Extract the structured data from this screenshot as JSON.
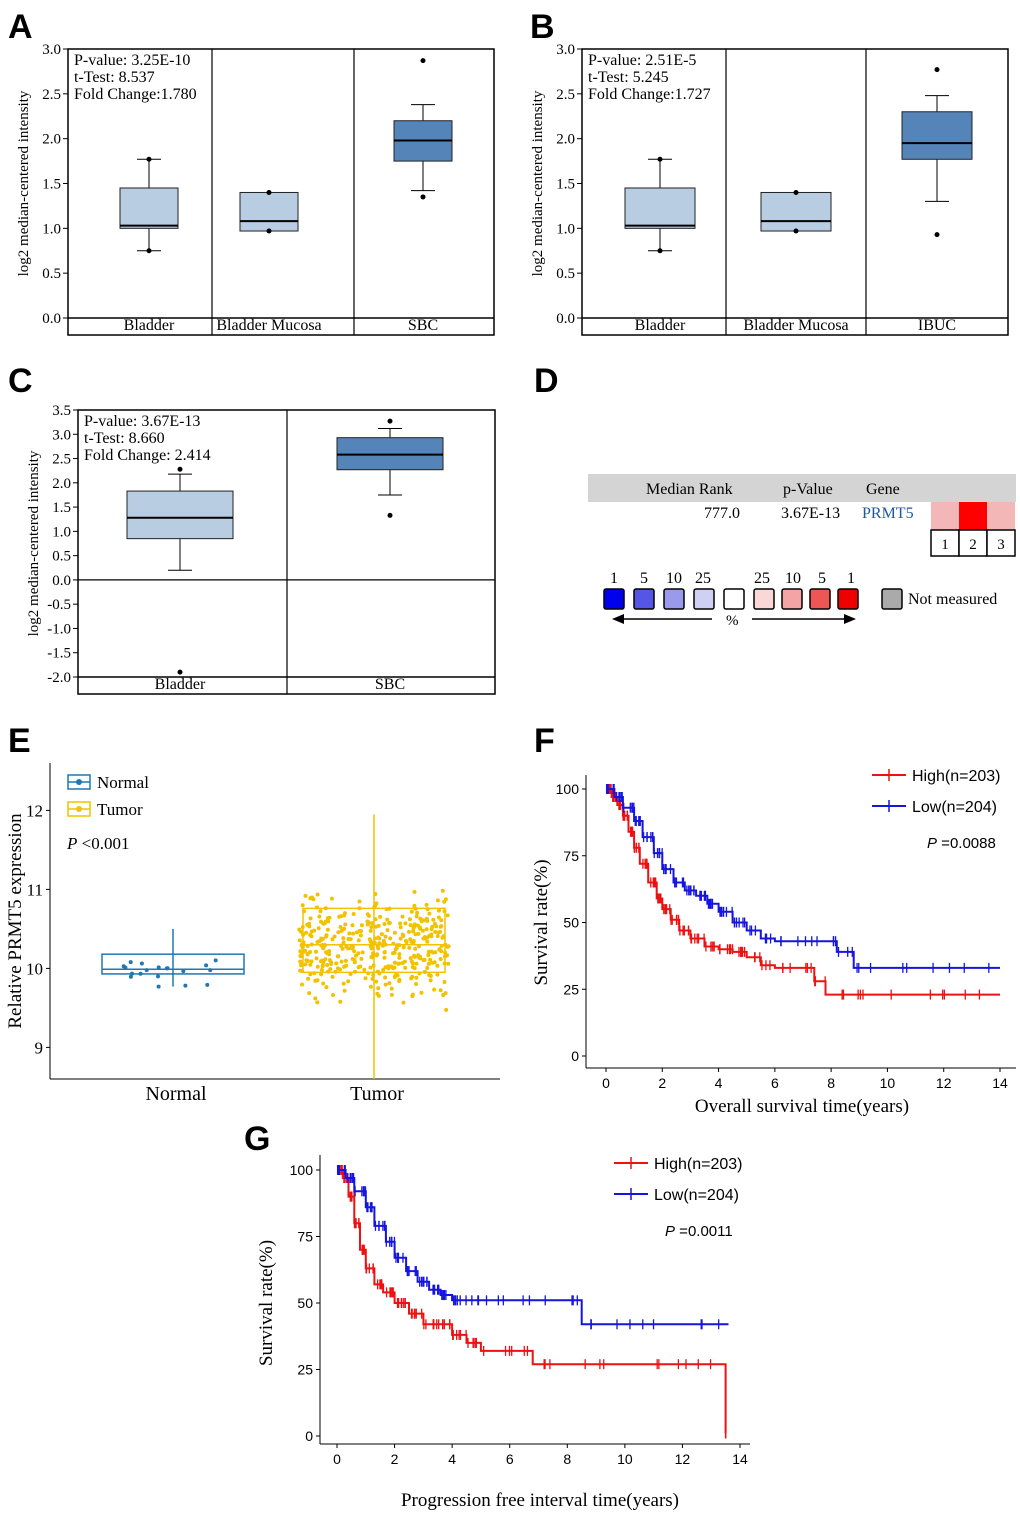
{
  "panel_labels": [
    "A",
    "B",
    "C",
    "D",
    "E",
    "F",
    "G"
  ],
  "colors": {
    "box_light": "#b8cde2",
    "box_dark": "#5585b8",
    "normal_blue": "#1f77b4",
    "tumor_yellow": "#f2c200",
    "high_red": "#ee1111",
    "low_blue": "#1515dd",
    "header_gray": "#d4d4d4"
  },
  "chart_data": [
    {
      "id": "A",
      "type": "box",
      "ylabel": "log2 median-centered intensity",
      "yticks": [
        "0.0",
        "0.5",
        "1.0",
        "1.5",
        "2.0",
        "2.5",
        "3.0"
      ],
      "ylim": [
        0,
        3
      ],
      "stats": [
        "P-value:  3.25E-10",
        "t-Test:    8.537",
        "Fold Change:1.780"
      ],
      "groups": [
        {
          "name": "Bladder",
          "whisker_low": 0.75,
          "q1": 1.0,
          "median": 1.03,
          "q3": 1.45,
          "whisker_high": 1.77,
          "outliers": [
            0.75,
            1.77
          ],
          "dark": false
        },
        {
          "name": "Bladder Mucosa",
          "whisker_low": 0.97,
          "q1": 0.97,
          "median": 1.08,
          "q3": 1.4,
          "whisker_high": 1.4,
          "outliers": [
            0.97,
            1.4
          ],
          "dark": false
        },
        {
          "name": "SBC",
          "whisker_low": 1.42,
          "q1": 1.75,
          "median": 1.98,
          "q3": 2.2,
          "whisker_high": 2.38,
          "outliers": [
            1.35,
            2.87
          ],
          "dark": true
        }
      ]
    },
    {
      "id": "B",
      "type": "box",
      "ylabel": "log2 median-centered intensity",
      "yticks": [
        "0.0",
        "0.5",
        "1.0",
        "1.5",
        "2.0",
        "2.5",
        "3.0"
      ],
      "ylim": [
        0,
        3
      ],
      "stats": [
        "P-value:  2.51E-5",
        "t-Test:    5.245",
        "Fold Change:1.727"
      ],
      "groups": [
        {
          "name": "Bladder",
          "whisker_low": 0.75,
          "q1": 1.0,
          "median": 1.03,
          "q3": 1.45,
          "whisker_high": 1.77,
          "outliers": [
            0.75,
            1.77
          ],
          "dark": false
        },
        {
          "name": "Bladder Mucosa",
          "whisker_low": 0.97,
          "q1": 0.97,
          "median": 1.08,
          "q3": 1.4,
          "whisker_high": 1.4,
          "outliers": [
            0.97,
            1.4
          ],
          "dark": false
        },
        {
          "name": "IBUC",
          "whisker_low": 1.3,
          "q1": 1.77,
          "median": 1.95,
          "q3": 2.3,
          "whisker_high": 2.48,
          "outliers": [
            0.93,
            2.77
          ],
          "dark": true
        }
      ]
    },
    {
      "id": "C",
      "type": "box",
      "ylabel": "log2 median-centered intensity",
      "yticks": [
        "-2.0",
        "-1.5",
        "-1.0",
        "-0.5",
        "0.0",
        "0.5",
        "1.0",
        "1.5",
        "2.0",
        "2.5",
        "3.0",
        "3.5"
      ],
      "ylim": [
        -2,
        3.5
      ],
      "stats": [
        "P-value:  3.67E-13",
        "t-Test:    8.660",
        "Fold Change:  2.414"
      ],
      "groups": [
        {
          "name": "Bladder",
          "whisker_low": 0.2,
          "q1": 0.85,
          "median": 1.28,
          "q3": 1.83,
          "whisker_high": 2.18,
          "outliers": [
            2.28,
            -1.9
          ],
          "dark": false
        },
        {
          "name": "SBC",
          "whisker_low": 1.75,
          "q1": 2.27,
          "median": 2.58,
          "q3": 2.93,
          "whisker_high": 3.12,
          "outliers": [
            1.33,
            3.27
          ],
          "dark": true
        }
      ]
    },
    {
      "id": "E",
      "type": "box+scatter",
      "ylabel": "Relative PRMT5 expression",
      "yticks": [
        "9",
        "10",
        "11",
        "12"
      ],
      "ylim": [
        8.6,
        12.6
      ],
      "legend": [
        "Normal",
        "Tumor"
      ],
      "p_prefix": "P",
      "p_text": " <0.001",
      "groups": [
        {
          "name": "Normal",
          "q1": 9.93,
          "median": 9.99,
          "q3": 10.18,
          "whisker_low": 9.77,
          "whisker_high": 10.5
        },
        {
          "name": "Tumor",
          "q1": 9.95,
          "median": 10.3,
          "q3": 10.76,
          "whisker_low": 8.6,
          "whisker_high": 11.95
        }
      ]
    },
    {
      "id": "F",
      "type": "line",
      "xlabel": "Overall survival time(years)",
      "ylabel": "Survival rate(%)",
      "xticks": [
        "0",
        "2",
        "4",
        "6",
        "8",
        "10",
        "12",
        "14"
      ],
      "yticks": [
        "0",
        "25",
        "50",
        "75",
        "100"
      ],
      "xlim": [
        0,
        14
      ],
      "ylim": [
        0,
        100
      ],
      "legend": [
        "High(n=203)",
        "Low(n=204)"
      ],
      "p_prefix": "P",
      "p_text": " =0.0088",
      "series": [
        {
          "name": "High(n=203)",
          "x": [
            0,
            0.2,
            0.4,
            0.6,
            0.8,
            1.0,
            1.2,
            1.5,
            1.8,
            2.0,
            2.3,
            2.6,
            3.0,
            3.5,
            4.0,
            4.5,
            5.0,
            5.5,
            6.0,
            7.0,
            7.4,
            7.8,
            8.5,
            10.0,
            12.0,
            14.0
          ],
          "y": [
            100,
            97,
            94,
            90,
            84,
            78,
            72,
            65,
            59,
            55,
            51,
            47,
            44,
            41,
            40,
            39,
            37,
            34,
            33,
            33,
            28,
            23,
            23,
            23,
            23,
            23
          ]
        },
        {
          "name": "Low(n=204)",
          "x": [
            0,
            0.3,
            0.6,
            1.0,
            1.3,
            1.7,
            2.0,
            2.4,
            2.8,
            3.2,
            3.6,
            4.0,
            4.5,
            5.0,
            5.5,
            6.0,
            7.0,
            8.0,
            8.2,
            8.8,
            9.5,
            12.0,
            14.0
          ],
          "y": [
            100,
            97,
            93,
            88,
            82,
            76,
            70,
            65,
            62,
            60,
            57,
            54,
            50,
            47,
            44,
            43,
            43,
            43,
            39,
            33,
            33,
            33,
            33
          ]
        }
      ]
    },
    {
      "id": "G",
      "type": "line",
      "xlabel": "Progression free interval time(years)",
      "ylabel": "Survival rate(%)",
      "xticks": [
        "0",
        "2",
        "4",
        "6",
        "8",
        "10",
        "12",
        "14"
      ],
      "yticks": [
        "0",
        "25",
        "50",
        "75",
        "100"
      ],
      "xlim": [
        0,
        14
      ],
      "ylim": [
        0,
        100
      ],
      "legend": [
        "High(n=203)",
        "Low(n=204)"
      ],
      "p_prefix": "P",
      "p_text": " =0.0011",
      "series": [
        {
          "name": "High(n=203)",
          "x": [
            0,
            0.2,
            0.4,
            0.6,
            0.8,
            1.0,
            1.3,
            1.6,
            2.0,
            2.5,
            3.0,
            3.5,
            4.0,
            4.5,
            5.0,
            6.0,
            6.8,
            7.5,
            10.0,
            12.0,
            13.5,
            13.5
          ],
          "y": [
            100,
            97,
            90,
            80,
            70,
            63,
            57,
            54,
            50,
            46,
            42,
            42,
            38,
            35,
            32,
            32,
            27,
            27,
            27,
            27,
            27,
            1
          ]
        },
        {
          "name": "Low(n=204)",
          "x": [
            0,
            0.3,
            0.6,
            1.0,
            1.3,
            1.7,
            2.0,
            2.4,
            2.8,
            3.2,
            3.6,
            4.0,
            4.5,
            6.0,
            8.0,
            8.5,
            10.0,
            12.0,
            13.6
          ],
          "y": [
            100,
            97,
            92,
            86,
            79,
            73,
            67,
            62,
            58,
            55,
            53,
            51,
            51,
            51,
            51,
            42,
            42,
            42,
            42
          ]
        }
      ]
    }
  ],
  "panel_d": {
    "header": [
      "Median Rank",
      "p-Value",
      "Gene"
    ],
    "row": {
      "median_rank": "777.0",
      "p_value": "3.67E-13",
      "gene": "PRMT5"
    },
    "cells": [
      "1",
      "2",
      "3"
    ],
    "cell_colors": [
      "#f4b7b7",
      "#ff0000",
      "#f4b7b7"
    ],
    "scale_labels": [
      "1",
      "5",
      "10",
      "25",
      "25",
      "10",
      "5",
      "1"
    ],
    "scale_colors": [
      "#0000ee",
      "#5555e6",
      "#9999ee",
      "#d0d0f4",
      "#ffffff",
      "#fad8d8",
      "#f4a4a4",
      "#ee5555",
      "#ee0000"
    ],
    "percent": "%",
    "not_measured": "Not measured"
  }
}
